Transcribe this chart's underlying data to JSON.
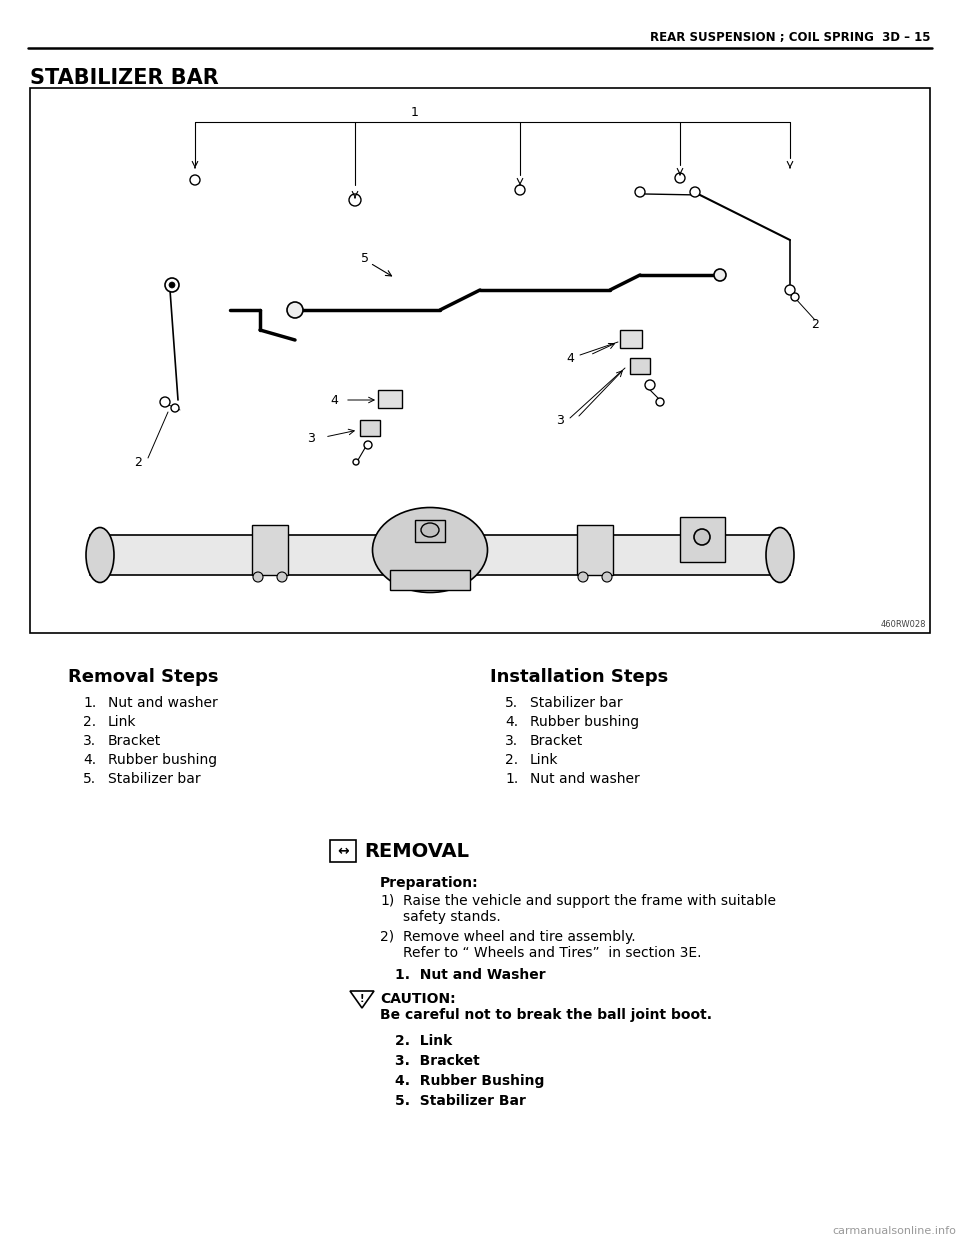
{
  "page_header_right": "REAR SUSPENSION ; COIL SPRING  3D – 15",
  "section_title": "STABILIZER BAR",
  "bg_color": "#ffffff",
  "image_code": "460RW028",
  "removal_steps_title": "Removal Steps",
  "removal_steps": [
    [
      "1.",
      "Nut and washer"
    ],
    [
      "2.",
      "Link"
    ],
    [
      "3.",
      "Bracket"
    ],
    [
      "4.",
      "Rubber bushing"
    ],
    [
      "5.",
      "Stabilizer bar"
    ]
  ],
  "installation_steps_title": "Installation Steps",
  "installation_steps": [
    [
      "5.",
      "Stabilizer bar"
    ],
    [
      "4.",
      "Rubber bushing"
    ],
    [
      "3.",
      "Bracket"
    ],
    [
      "2.",
      "Link"
    ],
    [
      "1.",
      "Nut and washer"
    ]
  ],
  "removal_section_title": "REMOVAL",
  "preparation_title": "Preparation:",
  "step1_bold": "1.  Nut and Washer",
  "caution_title": "CAUTION:",
  "caution_text": "Be careful not to break the ball joint boot.",
  "bold_steps": [
    "2.  Link",
    "3.  Bracket",
    "4.  Rubber Bushing",
    "5.  Stabilizer Bar"
  ],
  "watermark": "carmanualsonline.info"
}
